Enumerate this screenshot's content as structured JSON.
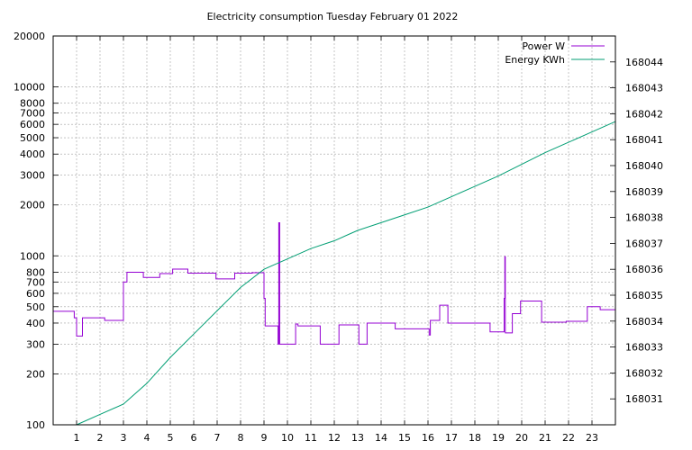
{
  "chart_data": {
    "type": "line",
    "title": "Electricity consumption Tuesday February 01 2022",
    "xlim": [
      0,
      24
    ],
    "x_ticks": [
      1,
      2,
      3,
      4,
      5,
      6,
      7,
      8,
      9,
      10,
      11,
      12,
      13,
      14,
      15,
      16,
      17,
      18,
      19,
      20,
      21,
      22,
      23
    ],
    "y_left": {
      "scale": "log",
      "lim": [
        100,
        20000
      ],
      "ticks": [
        100,
        200,
        300,
        400,
        500,
        600,
        700,
        800,
        1000,
        2000,
        3000,
        4000,
        5000,
        6000,
        7000,
        8000,
        10000,
        20000
      ],
      "grid_ticks": [
        100,
        200,
        300,
        400,
        500,
        600,
        700,
        800,
        1000,
        2000,
        3000,
        4000,
        5000,
        6000,
        7000,
        8000,
        10000,
        20000
      ]
    },
    "y_right": {
      "scale": "linear",
      "lim": [
        168030,
        168045
      ],
      "ticks": [
        168031,
        168032,
        168033,
        168034,
        168035,
        168036,
        168037,
        168038,
        168039,
        168040,
        168041,
        168042,
        168043,
        168044
      ]
    },
    "grid": true,
    "legend_position": "top-right",
    "series": [
      {
        "name": "Power W",
        "axis": "left",
        "color": "#9400d3",
        "step": true,
        "points": [
          [
            0,
            470
          ],
          [
            0.9,
            470
          ],
          [
            0.9,
            430
          ],
          [
            1.0,
            430
          ],
          [
            1.0,
            335
          ],
          [
            1.25,
            335
          ],
          [
            1.25,
            430
          ],
          [
            2.2,
            430
          ],
          [
            2.2,
            415
          ],
          [
            3.0,
            415
          ],
          [
            3.0,
            700
          ],
          [
            3.15,
            700
          ],
          [
            3.15,
            800
          ],
          [
            3.85,
            800
          ],
          [
            3.85,
            745
          ],
          [
            4.55,
            745
          ],
          [
            4.55,
            785
          ],
          [
            5.1,
            785
          ],
          [
            5.1,
            835
          ],
          [
            5.75,
            835
          ],
          [
            5.75,
            790
          ],
          [
            6.95,
            790
          ],
          [
            6.95,
            730
          ],
          [
            7.75,
            730
          ],
          [
            7.75,
            790
          ],
          [
            8.5,
            790
          ],
          [
            8.5,
            795
          ],
          [
            9.0,
            795
          ],
          [
            9.0,
            560
          ],
          [
            9.05,
            560
          ],
          [
            9.05,
            385
          ],
          [
            9.6,
            385
          ],
          [
            9.6,
            300
          ],
          [
            9.63,
            300
          ],
          [
            9.63,
            1570
          ],
          [
            9.67,
            1570
          ],
          [
            9.67,
            300
          ],
          [
            10.35,
            300
          ],
          [
            10.35,
            395
          ],
          [
            10.45,
            395
          ],
          [
            10.45,
            385
          ],
          [
            11.4,
            385
          ],
          [
            11.4,
            300
          ],
          [
            12.2,
            300
          ],
          [
            12.2,
            390
          ],
          [
            13.05,
            390
          ],
          [
            13.05,
            300
          ],
          [
            13.4,
            300
          ],
          [
            13.4,
            400
          ],
          [
            14.6,
            400
          ],
          [
            14.6,
            370
          ],
          [
            16.05,
            370
          ],
          [
            16.05,
            340
          ],
          [
            16.1,
            340
          ],
          [
            16.1,
            415
          ],
          [
            16.5,
            415
          ],
          [
            16.5,
            510
          ],
          [
            16.85,
            510
          ],
          [
            16.85,
            400
          ],
          [
            18.65,
            400
          ],
          [
            18.65,
            355
          ],
          [
            19.25,
            355
          ],
          [
            19.25,
            560
          ],
          [
            19.28,
            560
          ],
          [
            19.28,
            990
          ],
          [
            19.3,
            990
          ],
          [
            19.3,
            350
          ],
          [
            19.6,
            350
          ],
          [
            19.6,
            455
          ],
          [
            19.95,
            455
          ],
          [
            19.95,
            540
          ],
          [
            20.85,
            540
          ],
          [
            20.85,
            405
          ],
          [
            21.9,
            405
          ],
          [
            21.9,
            410
          ],
          [
            22.8,
            410
          ],
          [
            22.8,
            500
          ],
          [
            23.35,
            500
          ],
          [
            23.35,
            480
          ],
          [
            24.0,
            480
          ]
        ]
      },
      {
        "name": "Energy KWh",
        "axis": "right",
        "color": "#009e73",
        "step": false,
        "points": [
          [
            1.0,
            168030.0
          ],
          [
            2.0,
            168030.4
          ],
          [
            3.0,
            168030.8
          ],
          [
            4.0,
            168031.6
          ],
          [
            5.0,
            168032.6
          ],
          [
            6.0,
            168033.5
          ],
          [
            7.0,
            168034.4
          ],
          [
            8.0,
            168035.3
          ],
          [
            9.0,
            168036.0
          ],
          [
            10.0,
            168036.4
          ],
          [
            11.0,
            168036.8
          ],
          [
            12.0,
            168037.1
          ],
          [
            13.0,
            168037.5
          ],
          [
            14.0,
            168037.8
          ],
          [
            15.0,
            168038.1
          ],
          [
            16.0,
            168038.4
          ],
          [
            17.0,
            168038.8
          ],
          [
            18.0,
            168039.2
          ],
          [
            19.0,
            168039.6
          ],
          [
            20.0,
            168040.05
          ],
          [
            21.0,
            168040.5
          ],
          [
            22.0,
            168040.9
          ],
          [
            23.0,
            168041.3
          ],
          [
            24.0,
            168041.7
          ]
        ]
      }
    ]
  }
}
